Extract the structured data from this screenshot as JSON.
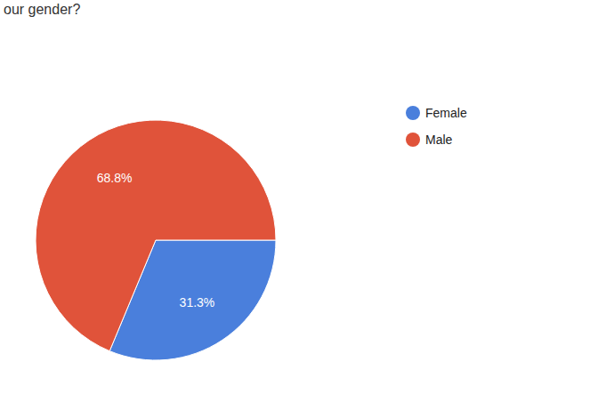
{
  "chart_data": {
    "type": "pie",
    "title": "our gender?",
    "categories": [
      "Female",
      "Male"
    ],
    "values": [
      31.3,
      68.8
    ],
    "value_labels": [
      "31.3%",
      "68.8%"
    ],
    "colors": [
      "#4a7fdc",
      "#e0533a"
    ],
    "data_labels": true,
    "legend": "top-right"
  }
}
